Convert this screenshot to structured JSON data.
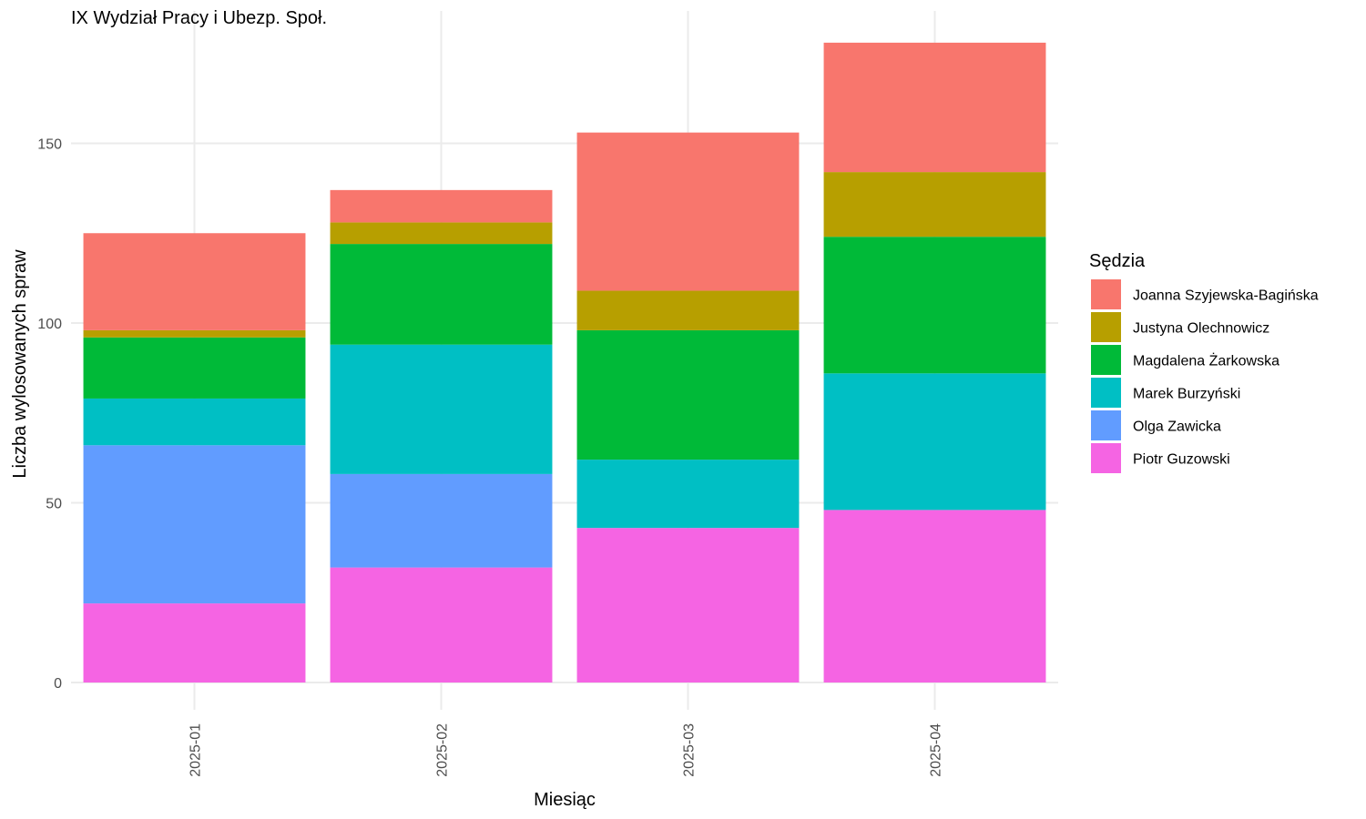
{
  "chart_data": {
    "type": "bar",
    "stacked": true,
    "title": "IX Wydział Pracy i Ubezp. Społ.",
    "xlabel": "Miesiąc",
    "ylabel": "Liczba wylosowanych spraw",
    "categories": [
      "2025-01",
      "2025-02",
      "2025-03",
      "2025-04"
    ],
    "ylim": [
      0,
      180
    ],
    "yticks": [
      0,
      50,
      100,
      150
    ],
    "grid": true,
    "legend": {
      "title": "Sędzia",
      "position": "right"
    },
    "series": [
      {
        "name": "Piotr Guzowski",
        "color": "#F564E3",
        "values": [
          22,
          32,
          43,
          48
        ]
      },
      {
        "name": "Olga Zawicka",
        "color": "#619CFF",
        "values": [
          44,
          26,
          0,
          0
        ]
      },
      {
        "name": "Marek Burzyński",
        "color": "#00BFC4",
        "values": [
          13,
          36,
          19,
          38
        ]
      },
      {
        "name": "Magdalena Żarkowska",
        "color": "#00BA38",
        "values": [
          17,
          28,
          36,
          38
        ]
      },
      {
        "name": "Justyna Olechnowicz",
        "color": "#B79F00",
        "values": [
          2,
          6,
          11,
          18
        ]
      },
      {
        "name": "Joanna Szyjewska-Bagińska",
        "color": "#F8766D",
        "values": [
          27,
          9,
          44,
          36
        ]
      }
    ]
  }
}
